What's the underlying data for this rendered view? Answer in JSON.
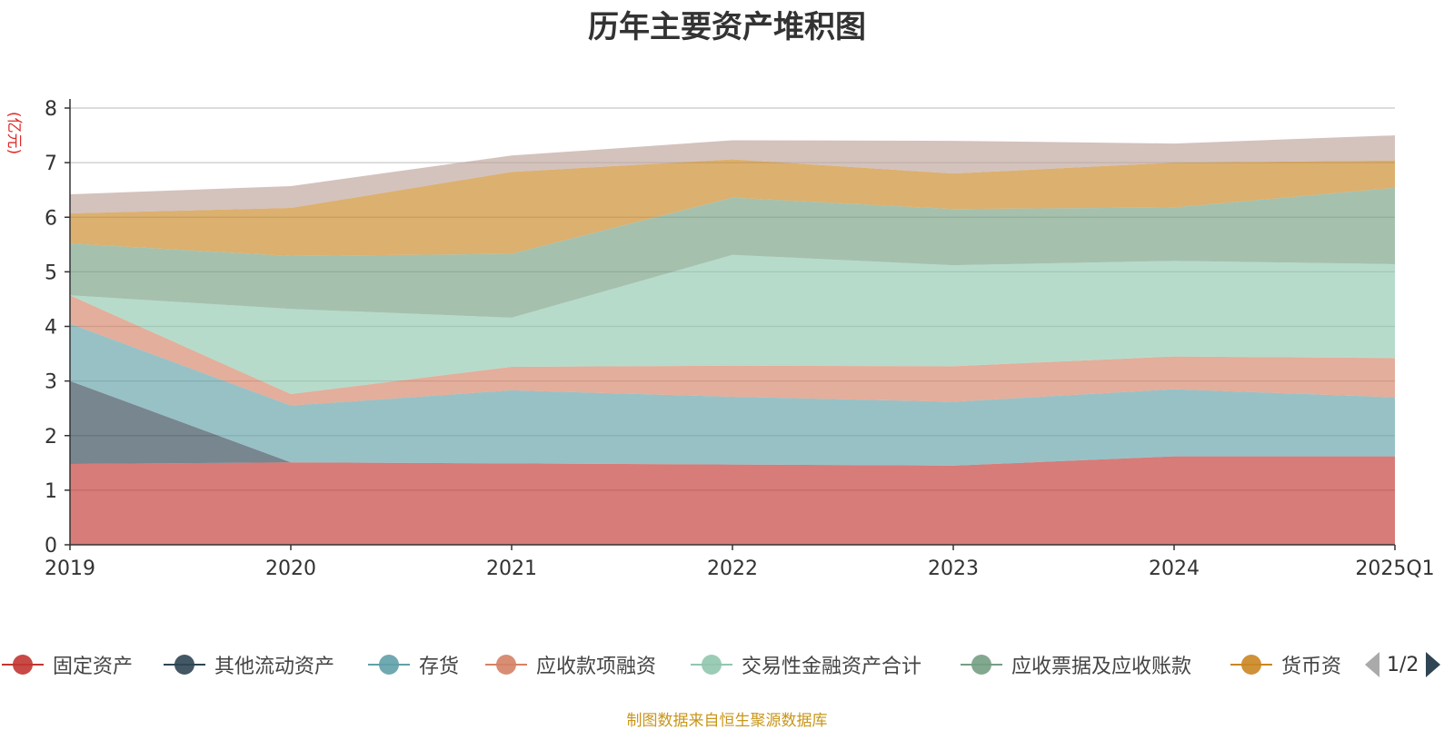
{
  "title": "历年主要资产堆积图",
  "unit_label": "(亿元)",
  "source": "制图数据来自恒生聚源数据库",
  "legend_pager": {
    "page_text": "1/2"
  },
  "chart_data": {
    "type": "area",
    "stacked": true,
    "title": "历年主要资产堆积图",
    "ylabel": "(亿元)",
    "ylim": [
      0,
      8
    ],
    "yticks": [
      "0",
      "1",
      "2",
      "3",
      "4",
      "5",
      "6",
      "7",
      "8"
    ],
    "grid": true,
    "legend_position": "bottom",
    "categories": [
      "2019",
      "2020",
      "2021",
      "2022",
      "2023",
      "2024",
      "2025Q1"
    ],
    "series": [
      {
        "name": "固定资产",
        "color": "#c23531",
        "values": [
          1.48,
          1.51,
          1.49,
          1.47,
          1.45,
          1.62,
          1.62
        ]
      },
      {
        "name": "其他流动资产",
        "color": "#2f4554",
        "values": [
          1.52,
          0.0,
          0.0,
          0.0,
          0.0,
          0.0,
          0.0
        ]
      },
      {
        "name": "存货",
        "color": "#61a0a8",
        "values": [
          1.05,
          1.04,
          1.34,
          1.24,
          1.17,
          1.23,
          1.08
        ]
      },
      {
        "name": "应收款项融资",
        "color": "#d48265",
        "values": [
          0.52,
          0.21,
          0.43,
          0.57,
          0.65,
          0.6,
          0.72
        ]
      },
      {
        "name": "交易性金融资产合计",
        "color": "#91c7ae",
        "values": [
          0.0,
          1.56,
          0.9,
          2.03,
          1.85,
          1.75,
          1.72
        ]
      },
      {
        "name": "应收票据及应收账款",
        "color": "#749f83",
        "values": [
          0.95,
          0.97,
          1.17,
          1.05,
          1.03,
          0.98,
          1.4
        ]
      },
      {
        "name": "货币资",
        "color": "#ca8622",
        "values": [
          0.55,
          0.88,
          1.5,
          0.7,
          0.65,
          0.82,
          0.5
        ]
      },
      {
        "name": "",
        "color": "#bda29a",
        "values": [
          0.35,
          0.4,
          0.3,
          0.35,
          0.6,
          0.35,
          0.46
        ]
      }
    ]
  }
}
